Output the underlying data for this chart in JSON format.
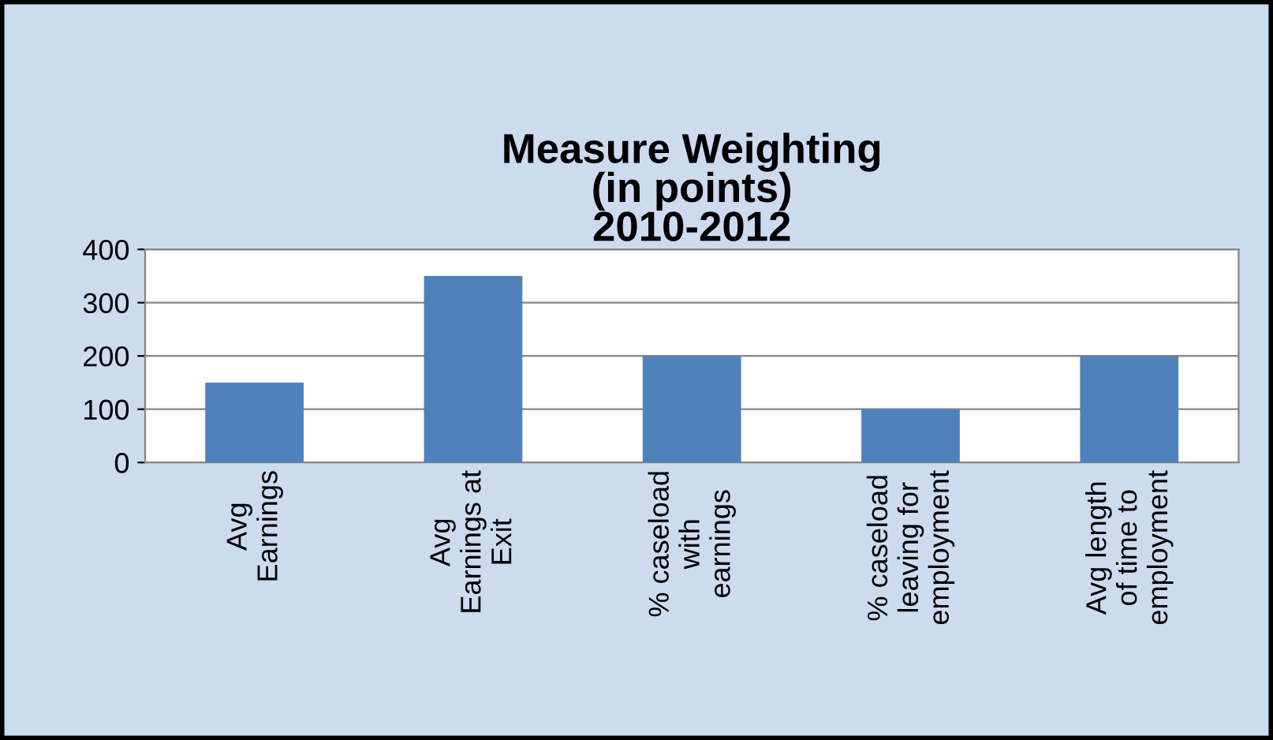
{
  "chart_data": {
    "type": "bar",
    "title": "Measure Weighting\n(in points)\n2010-2012",
    "categories": [
      "Avg\nEarnings",
      "Avg\nEarnings at\nExit",
      "% caseload\nwith\nearnings",
      "% caseload\nleaving for\nemployment",
      "Avg length\nof time to\nemployment"
    ],
    "values": [
      150,
      350,
      200,
      100,
      200
    ],
    "color": "#4f81bd",
    "ylim": [
      0,
      400
    ],
    "yticks": [
      0,
      100,
      200,
      300,
      400
    ],
    "grid": "y",
    "legend": false
  }
}
